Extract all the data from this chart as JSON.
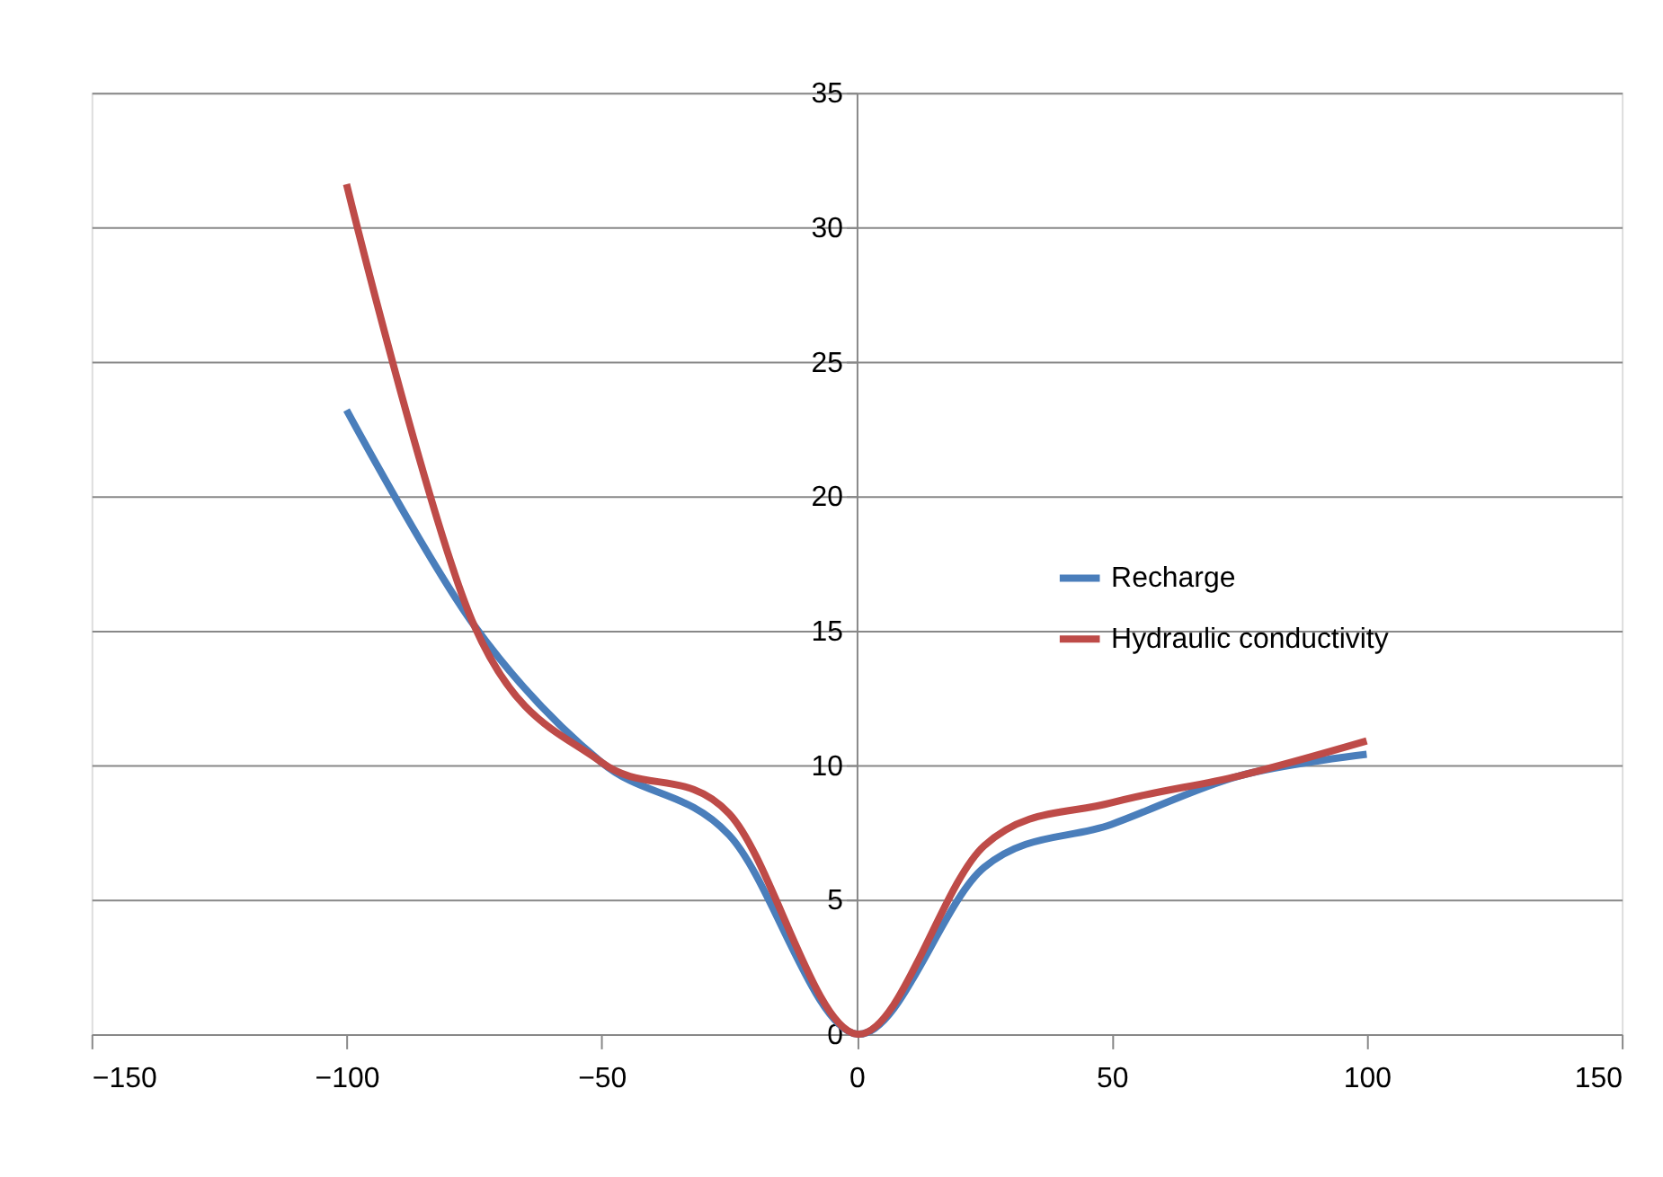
{
  "chart_data": {
    "type": "line",
    "x": [
      -100,
      -75,
      -50,
      -25,
      0,
      25,
      50,
      75,
      100
    ],
    "series": [
      {
        "name": "Recharge",
        "color": "#4a7ebb",
        "values": [
          23.2,
          15.2,
          10.1,
          7.4,
          0,
          6.2,
          7.8,
          9.6,
          10.4
        ]
      },
      {
        "name": "Hydraulic conductivity",
        "color": "#be4b48",
        "values": [
          31.6,
          15.2,
          10.1,
          8.2,
          0,
          7.0,
          8.6,
          9.6,
          10.9
        ]
      }
    ],
    "xlim": [
      -150,
      150
    ],
    "xticks": [
      -150,
      -100,
      -50,
      0,
      50,
      100,
      150
    ],
    "ylim": [
      0,
      35
    ],
    "yticks": [
      0,
      5,
      10,
      15,
      20,
      25,
      30,
      35
    ],
    "grid": "y",
    "legend": "right",
    "marker": "none",
    "line_style": "solid"
  }
}
